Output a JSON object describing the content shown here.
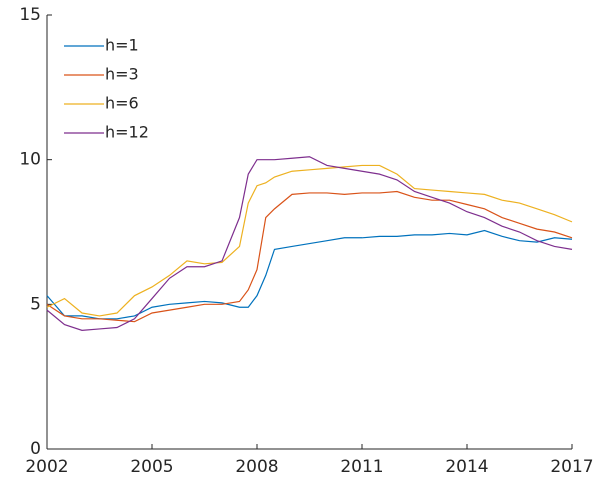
{
  "chart_data": {
    "type": "line",
    "x": [
      2002,
      2002.5,
      2003,
      2003.5,
      2004,
      2004.5,
      2005,
      2005.5,
      2006,
      2006.5,
      2007,
      2007.5,
      2007.75,
      2008,
      2008.25,
      2008.5,
      2009,
      2009.5,
      2010,
      2010.5,
      2011,
      2011.5,
      2012,
      2012.5,
      2013,
      2013.5,
      2014,
      2014.5,
      2015,
      2015.5,
      2016,
      2016.5,
      2017
    ],
    "series": [
      {
        "name": "h=1",
        "color": "#0072bd",
        "values": [
          5.3,
          4.6,
          4.6,
          4.5,
          4.5,
          4.6,
          4.9,
          5.0,
          5.05,
          5.1,
          5.05,
          4.9,
          4.9,
          5.3,
          6.0,
          6.9,
          7.0,
          7.1,
          7.2,
          7.3,
          7.3,
          7.35,
          7.35,
          7.4,
          7.4,
          7.45,
          7.4,
          7.55,
          7.35,
          7.2,
          7.15,
          7.3,
          7.25
        ]
      },
      {
        "name": "h=3",
        "color": "#d95319",
        "values": [
          5.0,
          4.6,
          4.5,
          4.5,
          4.45,
          4.4,
          4.7,
          4.8,
          4.9,
          5.0,
          5.0,
          5.1,
          5.5,
          6.2,
          8.0,
          8.3,
          8.8,
          8.85,
          8.85,
          8.8,
          8.85,
          8.85,
          8.9,
          8.7,
          8.6,
          8.6,
          8.45,
          8.3,
          8.0,
          7.8,
          7.6,
          7.5,
          7.3
        ]
      },
      {
        "name": "h=6",
        "color": "#edb120",
        "values": [
          4.9,
          5.2,
          4.7,
          4.6,
          4.7,
          5.3,
          5.6,
          6.0,
          6.5,
          6.4,
          6.45,
          7.0,
          8.5,
          9.1,
          9.2,
          9.4,
          9.6,
          9.65,
          9.7,
          9.75,
          9.8,
          9.8,
          9.5,
          9.0,
          8.95,
          8.9,
          8.85,
          8.8,
          8.6,
          8.5,
          8.3,
          8.1,
          7.85
        ]
      },
      {
        "name": "h=12",
        "color": "#7e2f8e",
        "values": [
          4.8,
          4.3,
          4.1,
          4.15,
          4.2,
          4.5,
          5.2,
          5.9,
          6.3,
          6.3,
          6.5,
          8.0,
          9.5,
          10.0,
          10.0,
          10.0,
          10.05,
          10.1,
          9.8,
          9.7,
          9.6,
          9.5,
          9.3,
          8.9,
          8.7,
          8.5,
          8.2,
          8.0,
          7.7,
          7.5,
          7.2,
          7.0,
          6.9
        ]
      }
    ],
    "xlim": [
      2002,
      2017
    ],
    "xticks": [
      2002,
      2005,
      2008,
      2011,
      2014,
      2017
    ],
    "ylim": [
      0,
      15
    ],
    "yticks": [
      0,
      5,
      10,
      15
    ],
    "legend": "northwest"
  }
}
